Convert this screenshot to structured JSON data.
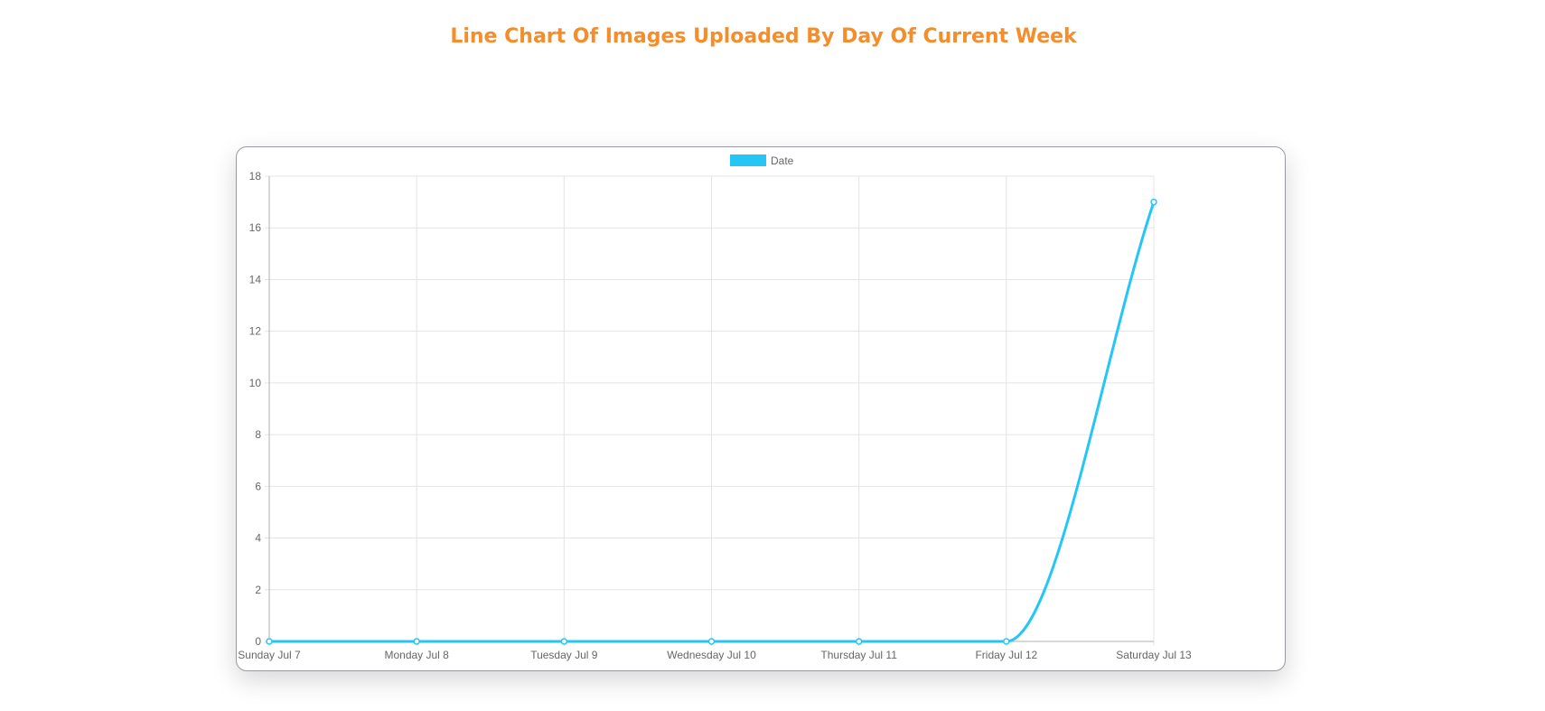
{
  "page": {
    "title": "Line Chart Of Images Uploaded By Day Of Current Week"
  },
  "chart_data": {
    "type": "line",
    "title": "",
    "xlabel": "",
    "ylabel": "",
    "categories": [
      "Sunday Jul 7",
      "Monday Jul 8",
      "Tuesday Jul 9",
      "Wednesday Jul 10",
      "Thursday Jul 11",
      "Friday Jul 12",
      "Saturday Jul 13"
    ],
    "series": [
      {
        "name": "Date",
        "values": [
          0,
          0,
          0,
          0,
          0,
          0,
          17
        ],
        "color": "#24c6f5"
      }
    ],
    "ylim": [
      0,
      18
    ],
    "yticks": [
      0,
      2,
      4,
      6,
      8,
      10,
      12,
      14,
      16,
      18
    ],
    "grid": true,
    "legend_position": "top-center"
  }
}
